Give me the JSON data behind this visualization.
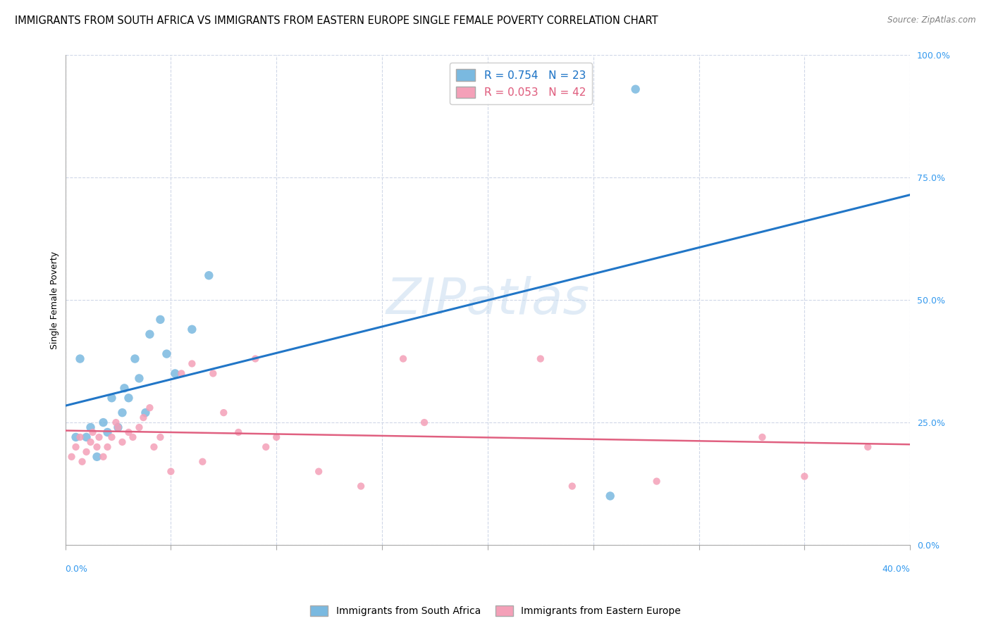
{
  "title": "IMMIGRANTS FROM SOUTH AFRICA VS IMMIGRANTS FROM EASTERN EUROPE SINGLE FEMALE POVERTY CORRELATION CHART",
  "source": "Source: ZipAtlas.com",
  "ylabel": "Single Female Poverty",
  "legend_label1": "Immigrants from South Africa",
  "legend_label2": "Immigrants from Eastern Europe",
  "r1": "0.754",
  "n1": "23",
  "r2": "0.053",
  "n2": "42",
  "blue_color": "#7ab9e0",
  "pink_color": "#f4a0b8",
  "blue_line_color": "#2176c7",
  "pink_line_color": "#e06080",
  "xlim": [
    0.0,
    0.4
  ],
  "ylim": [
    0.0,
    1.0
  ],
  "blue_points_x": [
    0.005,
    0.007,
    0.01,
    0.012,
    0.015,
    0.018,
    0.02,
    0.022,
    0.025,
    0.027,
    0.028,
    0.03,
    0.033,
    0.035,
    0.038,
    0.04,
    0.045,
    0.048,
    0.052,
    0.06,
    0.068,
    0.258,
    0.27
  ],
  "blue_points_y": [
    0.22,
    0.38,
    0.22,
    0.24,
    0.18,
    0.25,
    0.23,
    0.3,
    0.24,
    0.27,
    0.32,
    0.3,
    0.38,
    0.34,
    0.27,
    0.43,
    0.46,
    0.39,
    0.35,
    0.44,
    0.55,
    0.1,
    0.93
  ],
  "pink_points_x": [
    0.003,
    0.005,
    0.007,
    0.008,
    0.01,
    0.012,
    0.013,
    0.015,
    0.016,
    0.018,
    0.02,
    0.022,
    0.024,
    0.025,
    0.027,
    0.03,
    0.032,
    0.035,
    0.037,
    0.04,
    0.042,
    0.045,
    0.05,
    0.055,
    0.06,
    0.065,
    0.07,
    0.075,
    0.082,
    0.09,
    0.095,
    0.1,
    0.12,
    0.14,
    0.16,
    0.17,
    0.225,
    0.24,
    0.28,
    0.33,
    0.35,
    0.38
  ],
  "pink_points_y": [
    0.18,
    0.2,
    0.22,
    0.17,
    0.19,
    0.21,
    0.23,
    0.2,
    0.22,
    0.18,
    0.2,
    0.22,
    0.25,
    0.24,
    0.21,
    0.23,
    0.22,
    0.24,
    0.26,
    0.28,
    0.2,
    0.22,
    0.15,
    0.35,
    0.37,
    0.17,
    0.35,
    0.27,
    0.23,
    0.38,
    0.2,
    0.22,
    0.15,
    0.12,
    0.38,
    0.25,
    0.38,
    0.12,
    0.13,
    0.22,
    0.14,
    0.2
  ],
  "blue_marker_size": 80,
  "pink_marker_size": 55,
  "background_color": "#ffffff",
  "grid_color": "#d0d8e8",
  "yticks": [
    0.0,
    0.25,
    0.5,
    0.75,
    1.0
  ],
  "xticks": [
    0.0,
    0.05,
    0.1,
    0.15,
    0.2,
    0.25,
    0.3,
    0.35,
    0.4
  ]
}
